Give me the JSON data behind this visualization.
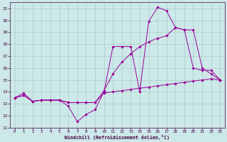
{
  "background_color": "#cce8e8",
  "grid_color": "#aacccc",
  "line_color": "#990099",
  "xlim": [
    -0.5,
    23.5
  ],
  "ylim": [
    11,
    21.5
  ],
  "yticks": [
    11,
    12,
    13,
    14,
    15,
    16,
    17,
    18,
    19,
    20,
    21
  ],
  "xticks": [
    0,
    1,
    2,
    3,
    4,
    5,
    6,
    7,
    8,
    9,
    10,
    11,
    12,
    13,
    14,
    15,
    16,
    17,
    18,
    19,
    20,
    21,
    22,
    23
  ],
  "xlabel": "Windchill (Refroidissement éolien,°C)",
  "series": [
    {
      "x": [
        0,
        1,
        2,
        3,
        4,
        5,
        6,
        7,
        8,
        9,
        10,
        11,
        12,
        13,
        14,
        15,
        16,
        17,
        18,
        19,
        20,
        21,
        22,
        23
      ],
      "y": [
        13.5,
        13.9,
        13.2,
        13.3,
        13.3,
        13.3,
        12.8,
        11.5,
        12.1,
        12.5,
        14.0,
        17.8,
        17.8,
        17.8,
        14.0,
        19.9,
        21.1,
        20.8,
        19.4,
        19.2,
        16.0,
        15.8,
        15.8,
        15.0
      ]
    },
    {
      "x": [
        0,
        1,
        2,
        3,
        4,
        5,
        6,
        7,
        8,
        9,
        10,
        11,
        12,
        13,
        14,
        15,
        16,
        17,
        18,
        19,
        20,
        21,
        22,
        23
      ],
      "y": [
        13.5,
        13.7,
        13.2,
        13.3,
        13.3,
        13.3,
        13.1,
        13.1,
        13.1,
        13.1,
        14.1,
        15.5,
        16.5,
        17.2,
        17.8,
        18.2,
        18.5,
        18.7,
        19.4,
        19.2,
        19.2,
        16.0,
        15.5,
        15.0
      ]
    },
    {
      "x": [
        0,
        1,
        2,
        3,
        4,
        5,
        6,
        7,
        8,
        9,
        10,
        11,
        12,
        13,
        14,
        15,
        16,
        17,
        18,
        19,
        20,
        21,
        22,
        23
      ],
      "y": [
        13.5,
        13.7,
        13.2,
        13.3,
        13.3,
        13.3,
        13.1,
        13.1,
        13.1,
        13.1,
        13.9,
        14.0,
        14.1,
        14.2,
        14.3,
        14.4,
        14.5,
        14.6,
        14.7,
        14.8,
        14.9,
        15.0,
        15.1,
        15.0
      ]
    }
  ]
}
